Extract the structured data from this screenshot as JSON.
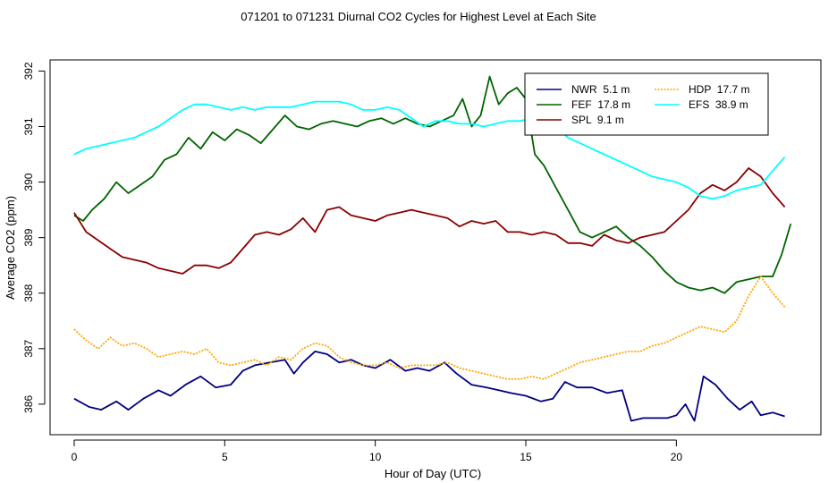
{
  "chart_data": {
    "type": "line",
    "title": "071201  to  071231 Diurnal CO2 Cycles for Highest Level at Each Site",
    "xlabel": "Hour of Day (UTC)",
    "ylabel": "Average CO2 (ppm)",
    "xlim": [
      -0.8,
      24.8
    ],
    "ylim": [
      385.45,
      392.2
    ],
    "xticks": [
      0,
      5,
      10,
      15,
      20
    ],
    "yticks": [
      386,
      387,
      388,
      389,
      390,
      391,
      392
    ],
    "legend_position": "top-right",
    "series": [
      {
        "name": "NWR  5.1 m",
        "color": "#000080",
        "style": "solid",
        "x": [
          0,
          0.5,
          0.9,
          1.4,
          1.8,
          2.3,
          2.8,
          3.2,
          3.7,
          4.2,
          4.7,
          5.2,
          5.6,
          6.0,
          6.5,
          7.0,
          7.3,
          7.6,
          8.0,
          8.4,
          8.8,
          9.2,
          9.6,
          10.0,
          10.5,
          11.0,
          11.4,
          11.8,
          12.3,
          12.7,
          13.2,
          13.7,
          14.1,
          14.5,
          15.0,
          15.5,
          15.9,
          16.3,
          16.7,
          17.2,
          17.7,
          18.2,
          18.5,
          18.9,
          19.3,
          19.7,
          20.0,
          20.3,
          20.6,
          20.9,
          21.3,
          21.7,
          22.1,
          22.5,
          22.8,
          23.2,
          23.6
        ],
        "values": [
          386.1,
          385.95,
          385.9,
          386.05,
          385.9,
          386.1,
          386.25,
          386.15,
          386.35,
          386.5,
          386.3,
          386.35,
          386.6,
          386.7,
          386.75,
          386.8,
          386.55,
          386.75,
          386.95,
          386.9,
          386.75,
          386.8,
          386.7,
          386.65,
          386.8,
          386.6,
          386.65,
          386.6,
          386.75,
          386.55,
          386.35,
          386.3,
          386.25,
          386.2,
          386.15,
          386.05,
          386.1,
          386.4,
          386.3,
          386.3,
          386.2,
          386.25,
          385.7,
          385.75,
          385.75,
          385.75,
          385.8,
          386.0,
          385.7,
          386.5,
          386.35,
          386.1,
          385.9,
          386.05,
          385.8,
          385.85,
          385.78
        ]
      },
      {
        "name": "FEF  17.8 m",
        "color": "#006400",
        "style": "solid",
        "x": [
          0,
          0.3,
          0.6,
          1.0,
          1.4,
          1.8,
          2.2,
          2.6,
          3.0,
          3.4,
          3.8,
          4.2,
          4.6,
          5.0,
          5.4,
          5.8,
          6.2,
          6.6,
          7.0,
          7.4,
          7.8,
          8.2,
          8.6,
          9.0,
          9.4,
          9.8,
          10.2,
          10.6,
          11.0,
          11.4,
          11.8,
          12.2,
          12.6,
          12.9,
          13.2,
          13.5,
          13.8,
          14.1,
          14.4,
          14.7,
          15.0,
          15.3,
          15.6,
          16.0,
          16.4,
          16.8,
          17.2,
          17.6,
          18.0,
          18.4,
          18.8,
          19.2,
          19.6,
          20.0,
          20.4,
          20.8,
          21.2,
          21.6,
          22.0,
          22.4,
          22.8,
          23.2,
          23.5,
          23.8
        ],
        "values": [
          389.4,
          389.3,
          389.5,
          389.7,
          390.0,
          389.8,
          389.95,
          390.1,
          390.4,
          390.5,
          390.8,
          390.6,
          390.9,
          390.75,
          390.95,
          390.85,
          390.7,
          390.95,
          391.2,
          391.0,
          390.95,
          391.05,
          391.1,
          391.05,
          391.0,
          391.1,
          391.15,
          391.05,
          391.15,
          391.05,
          391.0,
          391.1,
          391.2,
          391.5,
          391.0,
          391.2,
          391.9,
          391.4,
          391.6,
          391.7,
          391.5,
          390.5,
          390.3,
          389.9,
          389.5,
          389.1,
          389.0,
          389.1,
          389.2,
          389.0,
          388.85,
          388.65,
          388.4,
          388.2,
          388.1,
          388.05,
          388.1,
          388.0,
          388.2,
          388.25,
          388.3,
          388.3,
          388.7,
          389.25
        ]
      },
      {
        "name": "SPL  9.1 m",
        "color": "#8B0000",
        "style": "solid",
        "x": [
          0,
          0.4,
          0.8,
          1.2,
          1.6,
          2.0,
          2.4,
          2.8,
          3.2,
          3.6,
          4.0,
          4.4,
          4.8,
          5.2,
          5.6,
          6.0,
          6.4,
          6.8,
          7.2,
          7.6,
          8.0,
          8.4,
          8.8,
          9.2,
          9.6,
          10.0,
          10.4,
          10.8,
          11.2,
          11.6,
          12.0,
          12.4,
          12.8,
          13.2,
          13.6,
          14.0,
          14.4,
          14.8,
          15.2,
          15.6,
          16.0,
          16.4,
          16.8,
          17.2,
          17.6,
          18.0,
          18.4,
          18.8,
          19.2,
          19.6,
          20.0,
          20.4,
          20.8,
          21.2,
          21.6,
          22.0,
          22.4,
          22.8,
          23.2,
          23.6
        ],
        "values": [
          389.45,
          389.1,
          388.95,
          388.8,
          388.65,
          388.6,
          388.55,
          388.45,
          388.4,
          388.35,
          388.5,
          388.5,
          388.45,
          388.55,
          388.8,
          389.05,
          389.1,
          389.05,
          389.15,
          389.35,
          389.1,
          389.5,
          389.55,
          389.4,
          389.35,
          389.3,
          389.4,
          389.45,
          389.5,
          389.45,
          389.4,
          389.35,
          389.2,
          389.3,
          389.25,
          389.3,
          389.1,
          389.1,
          389.05,
          389.1,
          389.05,
          388.9,
          388.9,
          388.85,
          389.05,
          388.95,
          388.9,
          389.0,
          389.05,
          389.1,
          389.3,
          389.5,
          389.8,
          389.95,
          389.85,
          390.0,
          390.25,
          390.1,
          389.8,
          389.55
        ]
      },
      {
        "name": "HDP  17.7 m",
        "color": "#FFA500",
        "style": "dotted",
        "x": [
          0,
          0.4,
          0.8,
          1.2,
          1.6,
          2.0,
          2.4,
          2.8,
          3.2,
          3.6,
          4.0,
          4.4,
          4.8,
          5.2,
          5.6,
          6.0,
          6.4,
          6.8,
          7.2,
          7.6,
          8.0,
          8.4,
          8.8,
          9.2,
          9.6,
          10.0,
          10.4,
          10.8,
          11.2,
          11.6,
          12.0,
          12.4,
          12.8,
          13.2,
          13.6,
          14.0,
          14.4,
          14.8,
          15.2,
          15.6,
          16.0,
          16.4,
          16.8,
          17.2,
          17.6,
          18.0,
          18.4,
          18.8,
          19.2,
          19.6,
          20.0,
          20.4,
          20.8,
          21.2,
          21.6,
          22.0,
          22.4,
          22.8,
          23.2,
          23.6
        ],
        "values": [
          387.35,
          387.15,
          387.0,
          387.2,
          387.05,
          387.1,
          387.0,
          386.85,
          386.9,
          386.95,
          386.9,
          387.0,
          386.75,
          386.7,
          386.75,
          386.8,
          386.7,
          386.85,
          386.8,
          387.0,
          387.1,
          387.05,
          386.85,
          386.75,
          386.7,
          386.7,
          386.75,
          386.65,
          386.7,
          386.7,
          386.7,
          386.75,
          386.65,
          386.6,
          386.55,
          386.5,
          386.45,
          386.45,
          386.5,
          386.45,
          386.55,
          386.65,
          386.75,
          386.8,
          386.85,
          386.9,
          386.95,
          386.95,
          387.05,
          387.1,
          387.2,
          387.3,
          387.4,
          387.35,
          387.3,
          387.5,
          387.95,
          388.3,
          388.0,
          387.75
        ]
      },
      {
        "name": "EFS  38.9 m",
        "color": "#00FFFF",
        "style": "solid",
        "x": [
          0,
          0.4,
          0.8,
          1.2,
          1.6,
          2.0,
          2.4,
          2.8,
          3.2,
          3.6,
          4.0,
          4.4,
          4.8,
          5.2,
          5.6,
          6.0,
          6.4,
          6.8,
          7.2,
          7.6,
          8.0,
          8.4,
          8.8,
          9.2,
          9.6,
          10.0,
          10.4,
          10.8,
          11.2,
          11.6,
          12.0,
          12.4,
          12.8,
          13.2,
          13.6,
          14.0,
          14.4,
          14.8,
          15.2,
          15.6,
          16.0,
          16.4,
          16.8,
          17.2,
          17.6,
          18.0,
          18.4,
          18.8,
          19.2,
          19.6,
          20.0,
          20.4,
          20.8,
          21.2,
          21.6,
          22.0,
          22.4,
          22.8,
          23.2,
          23.6
        ],
        "values": [
          390.5,
          390.6,
          390.65,
          390.7,
          390.75,
          390.8,
          390.9,
          391.0,
          391.15,
          391.3,
          391.4,
          391.4,
          391.35,
          391.3,
          391.35,
          391.3,
          391.35,
          391.35,
          391.35,
          391.4,
          391.45,
          391.45,
          391.45,
          391.4,
          391.3,
          391.3,
          391.35,
          391.3,
          391.15,
          391.0,
          391.1,
          391.1,
          391.05,
          391.05,
          391.0,
          391.05,
          391.1,
          391.1,
          391.15,
          391.1,
          391.0,
          390.8,
          390.7,
          390.6,
          390.5,
          390.4,
          390.3,
          390.2,
          390.1,
          390.05,
          390.0,
          389.9,
          389.75,
          389.7,
          389.75,
          389.85,
          389.9,
          389.95,
          390.2,
          390.45
        ]
      }
    ]
  }
}
